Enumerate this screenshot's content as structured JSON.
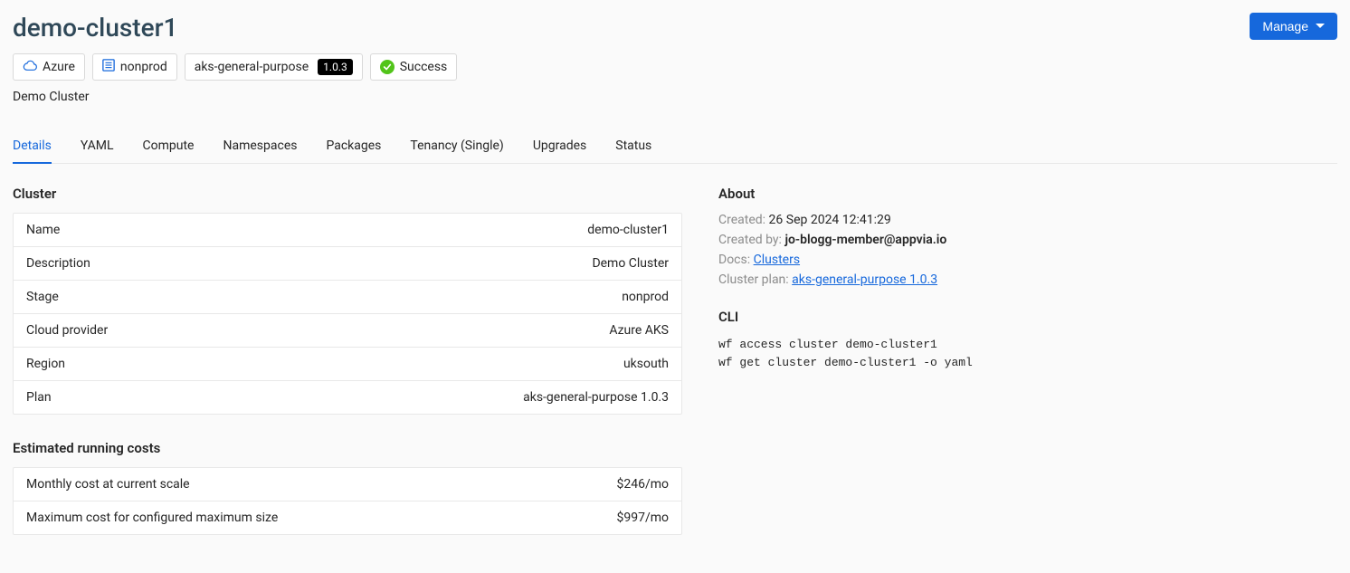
{
  "header": {
    "title": "demo-cluster1",
    "subtitle": "Demo Cluster",
    "manage_button": "Manage",
    "tags": {
      "cloud": "Azure",
      "stage": "nonprod",
      "plan_name": "aks-general-purpose",
      "plan_version": "1.0.3",
      "status": "Success"
    }
  },
  "tabs": [
    "Details",
    "YAML",
    "Compute",
    "Namespaces",
    "Packages",
    "Tenancy (Single)",
    "Upgrades",
    "Status"
  ],
  "active_tab_index": 0,
  "cluster_section": {
    "title": "Cluster",
    "rows": [
      {
        "label": "Name",
        "value": "demo-cluster1"
      },
      {
        "label": "Description",
        "value": "Demo Cluster"
      },
      {
        "label": "Stage",
        "value": "nonprod"
      },
      {
        "label": "Cloud provider",
        "value": "Azure AKS"
      },
      {
        "label": "Region",
        "value": "uksouth"
      },
      {
        "label": "Plan",
        "value": "aks-general-purpose 1.0.3"
      }
    ]
  },
  "costs_section": {
    "title": "Estimated running costs",
    "rows": [
      {
        "label": "Monthly cost at current scale",
        "value": "$246/mo"
      },
      {
        "label": "Maximum cost for configured maximum size",
        "value": "$997/mo"
      }
    ]
  },
  "about_section": {
    "title": "About",
    "created_label": "Created:",
    "created_value": "26 Sep 2024 12:41:29",
    "created_by_label": "Created by:",
    "created_by_value": "jo-blogg-member@appvia.io",
    "docs_label": "Docs:",
    "docs_link": "Clusters",
    "plan_label": "Cluster plan:",
    "plan_link": "aks-general-purpose 1.0.3"
  },
  "cli_section": {
    "title": "CLI",
    "commands": "wf access cluster demo-cluster1\nwf get cluster demo-cluster1 -o yaml"
  },
  "colors": {
    "primary": "#1668dc",
    "success": "#52c41a",
    "text": "#262626",
    "muted": "#8c8c8c",
    "border": "#e8e8e8",
    "background": "#fafafa"
  }
}
